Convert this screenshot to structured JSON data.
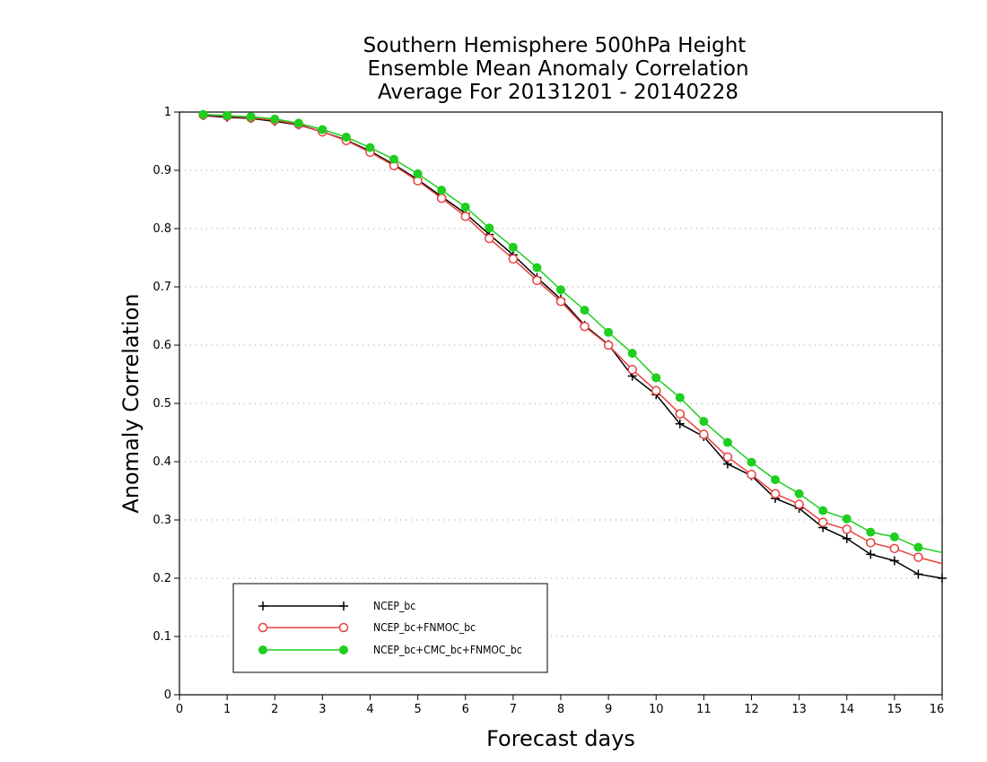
{
  "chart_data": {
    "type": "line",
    "title_lines": [
      "Southern Hemisphere 500hPa Height",
      "Ensemble Mean Anomaly Correlation",
      "Average For 20131201 - 20140228"
    ],
    "xlabel": "Forecast days",
    "ylabel": "Anomaly Correlation",
    "xlim": [
      0,
      16
    ],
    "ylim": [
      0,
      1
    ],
    "x_ticks": [
      "0",
      "1",
      "2",
      "3",
      "4",
      "5",
      "6",
      "7",
      "8",
      "9",
      "10",
      "11",
      "12",
      "13",
      "14",
      "15",
      "16"
    ],
    "y_ticks": [
      "0",
      "0.1",
      "0.2",
      "0.3",
      "0.4",
      "0.5",
      "0.6",
      "0.7",
      "0.8",
      "0.9",
      "1"
    ],
    "grid": "horizontal dotted",
    "legend_position": "lower-left",
    "x": [
      0.5,
      1,
      1.5,
      2,
      2.5,
      3,
      3.5,
      4,
      4.5,
      5,
      5.5,
      6,
      6.5,
      7,
      7.5,
      8,
      8.5,
      9,
      9.5,
      10,
      10.5,
      11,
      11.5,
      12,
      12.5,
      13,
      13.5,
      14,
      14.5,
      15,
      15.5,
      16
    ],
    "series": [
      {
        "name": "NCEP_bc",
        "color": "#000000",
        "marker": "plus",
        "values": [
          0.994,
          0.991,
          0.989,
          0.984,
          0.978,
          0.966,
          0.952,
          0.933,
          0.91,
          0.884,
          0.855,
          0.826,
          0.79,
          0.755,
          0.716,
          0.679,
          0.634,
          0.601,
          0.547,
          0.515,
          0.465,
          0.443,
          0.396,
          0.376,
          0.337,
          0.32,
          0.287,
          0.268,
          0.241,
          0.23,
          0.207,
          0.2
        ]
      },
      {
        "name": "NCEP_bc+FNMOC_bc",
        "color": "#e8403e",
        "marker": "open-circle",
        "values": [
          0.995,
          0.993,
          0.99,
          0.986,
          0.979,
          0.966,
          0.951,
          0.931,
          0.908,
          0.882,
          0.852,
          0.821,
          0.783,
          0.748,
          0.711,
          0.675,
          0.632,
          0.6,
          0.558,
          0.522,
          0.482,
          0.447,
          0.408,
          0.378,
          0.345,
          0.327,
          0.296,
          0.284,
          0.261,
          0.251,
          0.236,
          0.225
        ]
      },
      {
        "name": "NCEP_bc+CMC_bc+FNMOC_bc",
        "color": "#1fce1f",
        "marker": "filled-circle",
        "values": [
          0.996,
          0.994,
          0.992,
          0.988,
          0.981,
          0.97,
          0.957,
          0.939,
          0.919,
          0.894,
          0.866,
          0.837,
          0.801,
          0.768,
          0.733,
          0.695,
          0.66,
          0.622,
          0.586,
          0.544,
          0.51,
          0.469,
          0.433,
          0.399,
          0.369,
          0.345,
          0.316,
          0.302,
          0.279,
          0.271,
          0.253,
          0.244
        ]
      }
    ]
  }
}
